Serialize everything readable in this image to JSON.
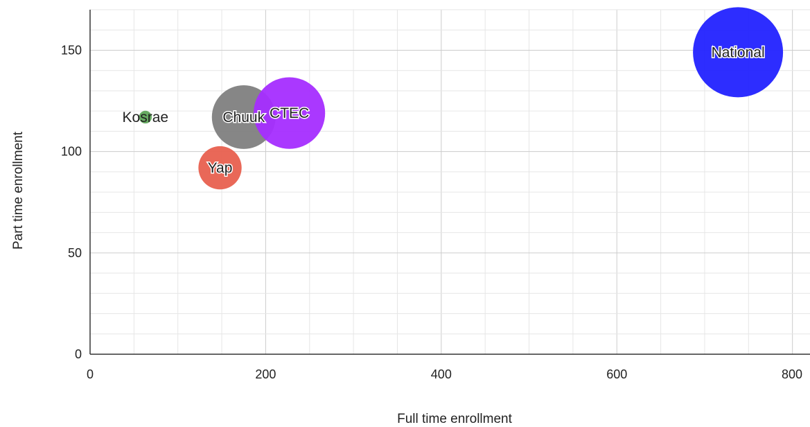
{
  "chart_data": {
    "type": "scatter",
    "variant": "bubble",
    "title": "",
    "xlabel": "Full time enrollment",
    "ylabel": "Part time enrollment",
    "xlim": [
      0,
      820
    ],
    "ylim": [
      0,
      170
    ],
    "x_ticks": [
      0,
      200,
      400,
      600,
      800
    ],
    "y_ticks": [
      0,
      50,
      100,
      150
    ],
    "grid": true,
    "points": [
      {
        "label": "Kosrae",
        "x": 63,
        "y": 117,
        "size": 2,
        "color": "#5fa55a"
      },
      {
        "label": "Yap",
        "x": 148,
        "y": 92,
        "size": 23,
        "color": "#e8604f"
      },
      {
        "label": "Chuuk",
        "x": 175,
        "y": 117,
        "size": 50,
        "color": "#808080"
      },
      {
        "label": "CTEC",
        "x": 227,
        "y": 119,
        "size": 63,
        "color": "#a52dff"
      },
      {
        "label": "National",
        "x": 738,
        "y": 149,
        "size": 100,
        "color": "#2222ff"
      }
    ]
  }
}
